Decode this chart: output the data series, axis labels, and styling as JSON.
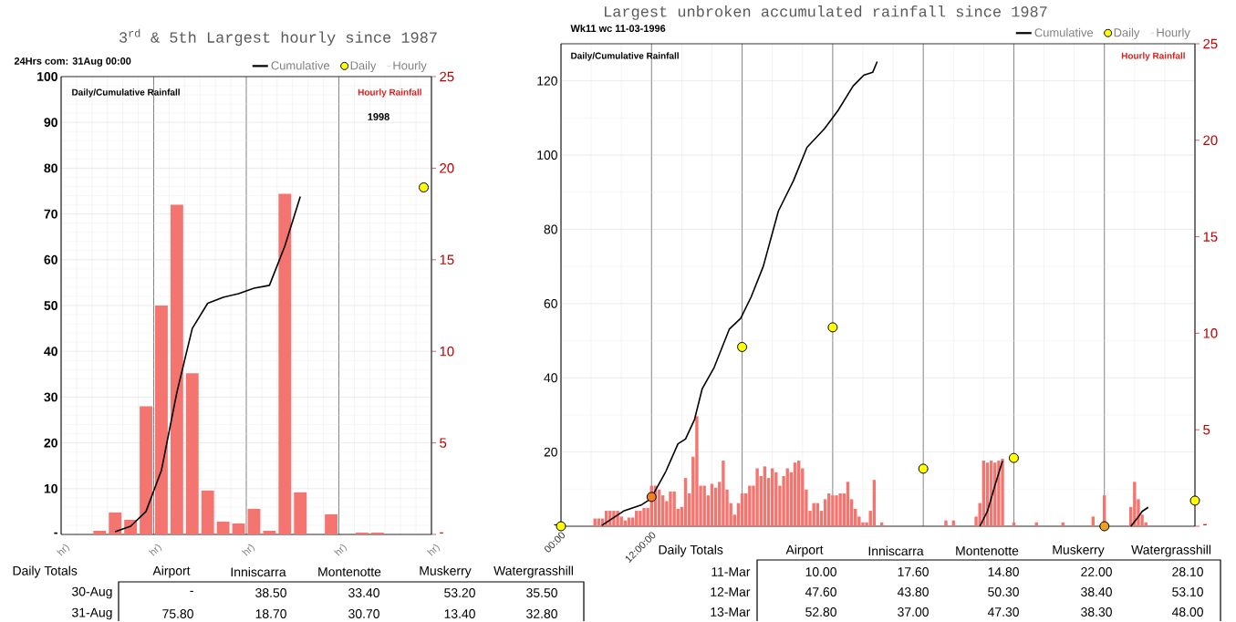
{
  "chart_data": [
    {
      "type": "bar",
      "title": "3$^{rd}$ & 5th Largest hourly since 1987",
      "ylabel": "Daily/Cumulative Rainfall",
      "y2label": "Hourly Rainfall",
      "annotations": [
        "24Hrs com:  31Aug 00:00",
        "1998",
        "hr)",
        "hr)",
        "hr)",
        "hr)",
        "hr)"
      ],
      "categories": [
        null,
        null,
        null,
        null,
        null,
        null,
        null,
        null,
        null,
        null,
        null,
        null,
        null,
        null,
        null,
        null,
        null,
        null,
        null,
        null,
        null,
        null,
        null,
        null
      ],
      "ylim": [
        0,
        100
      ],
      "yticks": [
        {
          "value": 0,
          "label": "-"
        },
        10,
        20,
        30,
        40,
        50,
        60,
        70,
        80,
        90,
        100
      ],
      "y2lim": [
        0,
        25
      ],
      "y2ticks": [
        {
          "value": 0,
          "label": "-"
        },
        5,
        10,
        15,
        20,
        25
      ],
      "grid": true,
      "legend": "top right",
      "series": [
        {
          "name": "Cumulative",
          "type": "line",
          "color": "#000000",
          "values": [
            null,
            null,
            null,
            0.6,
            1.8,
            5.0,
            14.0,
            31.0,
            45.0,
            50.5,
            51.8,
            52.6,
            53.8,
            54.4,
            63.0,
            73.8,
            null,
            null,
            null,
            null,
            null,
            null,
            null,
            null
          ]
        },
        {
          "name": "Daily",
          "type": "scatter",
          "marker": "circle",
          "color": "#ffff00",
          "values": [
            null,
            null,
            null,
            null,
            null,
            null,
            null,
            null,
            null,
            null,
            null,
            null,
            null,
            null,
            null,
            null,
            null,
            null,
            null,
            null,
            null,
            null,
            null,
            75.8
          ]
        },
        {
          "name": "Hourly",
          "type": "bar",
          "axis": "y2",
          "color": "#f4756f",
          "values": [
            0,
            0,
            0.2,
            1.2,
            0.8,
            7.0,
            12.5,
            18.0,
            8.8,
            2.4,
            0.7,
            0.6,
            1.4,
            0.2,
            18.6,
            2.3,
            0,
            1.1,
            0,
            0.1,
            0.1,
            0,
            0,
            0
          ]
        }
      ]
    },
    {
      "type": "other",
      "title": "Daily Totals",
      "categories": [
        "Airport",
        "Inniscarra",
        "Montenotte",
        "Muskerry",
        "Watergrasshill"
      ],
      "y_categories": [
        "30-Aug",
        "31-Aug"
      ],
      "cell_labels": [
        [
          "-",
          "38.50",
          "33.40",
          "53.20",
          "35.50"
        ],
        [
          "75.80",
          "18.70",
          "30.70",
          "13.40",
          "32.80"
        ]
      ]
    },
    {
      "type": "bar",
      "title": "Largest unbroken accumulated rainfall since 1987",
      "ylabel": "Daily/Cumulative Rainfall",
      "y2label": "Hourly Rainfall",
      "annotations": [
        "Wk11 wc 11-03-1996"
      ],
      "xlim": [
        0,
        84
      ],
      "xticks": [
        {
          "value": 0,
          "label": "00:00"
        },
        {
          "value": 12,
          "label": "12:00:00"
        },
        {
          "value": 24,
          "label": null
        },
        {
          "value": 36,
          "label": null
        },
        {
          "value": 48,
          "label": null
        },
        {
          "value": 60,
          "label": null
        },
        {
          "value": 72,
          "label": null
        },
        {
          "value": 84,
          "label": null
        }
      ],
      "ylim": [
        0,
        130
      ],
      "yticks": [
        {
          "value": 0,
          "label": "-"
        },
        20,
        40,
        60,
        80,
        100,
        120
      ],
      "y2lim": [
        0,
        25
      ],
      "y2ticks": [
        {
          "value": 0,
          "label": "-"
        },
        5,
        10,
        15,
        20,
        25
      ],
      "grid": true,
      "legend": "top right",
      "series": [
        {
          "name": "Cumulative",
          "type": "line",
          "color": "#000000",
          "x": [
            5.4,
            8.3,
            10.7,
            11.9,
            13.9,
            15.5,
            16.5,
            17.7,
            18.7,
            20.3,
            22.3,
            23.8,
            25.2,
            26.8,
            28.8,
            30.8,
            32.6,
            34.9,
            36.7,
            38.7,
            40.1,
            41.3,
            41.9,
            50,
            55.5,
            56.5,
            57.5,
            58.5,
            65,
            75.5,
            76.5,
            77.0,
            77.8
          ],
          "values": [
            0.2,
            4.1,
            5.8,
            7.4,
            14.8,
            22.2,
            23.5,
            28.8,
            37.0,
            42.8,
            53.1,
            56.0,
            61.8,
            70.0,
            84.9,
            93.1,
            102.1,
            107.1,
            112.0,
            118.6,
            121.5,
            122.3,
            125.2,
            null,
            0,
            4,
            11,
            17.6,
            null,
            0,
            2.5,
            4,
            5.1
          ]
        },
        {
          "name": "Daily",
          "type": "scatter",
          "marker": "circle",
          "color": "#ffff00",
          "colors": [
            "#ffff00",
            "#f08020",
            "#ffff00",
            "#ffff00",
            "#ffff00",
            "#ffff00",
            "#f0a020",
            "#ffff00"
          ],
          "x": [
            0,
            12,
            24,
            36,
            48,
            60,
            72,
            84
          ],
          "values": [
            0,
            7.9,
            48.3,
            53.6,
            15.5,
            18.4,
            0,
            6.9
          ]
        },
        {
          "name": "Hourly",
          "type": "bar",
          "axis": "y2",
          "color": "#f4756f",
          "x": [
            4.5,
            5.0,
            5.5,
            6.0,
            6.5,
            7.0,
            7.5,
            8.0,
            8.5,
            9.0,
            9.5,
            10.0,
            10.5,
            11.0,
            11.5,
            12.0,
            12.5,
            13.0,
            13.5,
            14.0,
            14.5,
            15.0,
            15.5,
            16.0,
            16.5,
            17.0,
            17.5,
            18.0,
            18.5,
            19.0,
            19.5,
            20.0,
            20.5,
            21.0,
            21.5,
            22.0,
            22.5,
            23.0,
            23.5,
            24.0,
            24.5,
            25.0,
            25.5,
            26.0,
            26.5,
            27.0,
            27.5,
            28.0,
            28.5,
            29.0,
            29.5,
            30.0,
            30.5,
            31.0,
            31.5,
            32.0,
            32.5,
            33.0,
            33.5,
            34.0,
            34.5,
            35.0,
            35.5,
            36.0,
            36.5,
            37.0,
            37.5,
            38.0,
            38.5,
            39.0,
            39.5,
            40.0,
            40.5,
            41.0,
            41.5,
            42.5,
            51.0,
            52.0,
            55.0,
            55.5,
            56.0,
            56.5,
            57.0,
            57.5,
            58.0,
            58.5,
            60.0,
            63.0,
            66.5,
            70.5,
            72.0,
            75.5,
            76.0,
            76.5,
            77.0,
            77.5
          ],
          "values": [
            0.4,
            0.4,
            0.4,
            0.8,
            0.8,
            0.8,
            0.8,
            0.5,
            0.3,
            0.45,
            0.45,
            0.8,
            0.8,
            0.95,
            0.95,
            2.1,
            2.1,
            1.9,
            1.6,
            1.3,
            1.8,
            1.8,
            0.9,
            1.0,
            2.5,
            1.7,
            3.6,
            5.7,
            2.1,
            2.1,
            1.6,
            2.2,
            2.0,
            2.3,
            3.4,
            1.9,
            1.2,
            0.6,
            1.2,
            1.7,
            1.7,
            2.1,
            2.1,
            3.0,
            2.6,
            3.1,
            2.5,
            3.0,
            2.8,
            2.1,
            2.6,
            3.0,
            2.8,
            3.3,
            3.4,
            3.0,
            1.9,
            0.8,
            1.2,
            1.2,
            0.8,
            1.4,
            1.7,
            1.6,
            1.6,
            1.7,
            1.7,
            2.3,
            1.4,
            0.9,
            0.5,
            0.2,
            0.2,
            0.8,
            2.4,
            0.2,
            0.3,
            0.3,
            0.5,
            1.2,
            3.4,
            3.3,
            3.4,
            3.3,
            3.4,
            3.5,
            0.2,
            0.2,
            0.2,
            0.5,
            1.6,
            1.0,
            2.3,
            1.4,
            0.6,
            0.2
          ]
        }
      ]
    },
    {
      "type": "other",
      "title": "Daily Totals",
      "categories": [
        "Airport",
        "Inniscarra",
        "Montenotte",
        "Muskerry",
        "Watergrasshill"
      ],
      "y_categories": [
        "11-Mar",
        "12-Mar",
        "13-Mar"
      ],
      "cell_labels": [
        [
          "10.00",
          "17.60",
          "14.80",
          "22.00",
          "28.10"
        ],
        [
          "47.60",
          "43.80",
          "50.30",
          "38.40",
          "53.10"
        ],
        [
          "52.80",
          "37.00",
          "47.30",
          "38.30",
          "48.00"
        ]
      ]
    }
  ]
}
